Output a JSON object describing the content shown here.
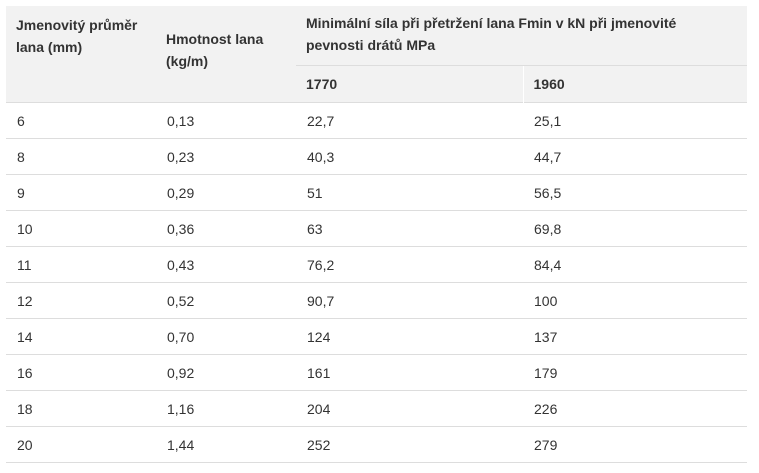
{
  "table": {
    "headers": {
      "diameter": "Jmenovitý průměr lana (mm)",
      "mass": "Hmotnost lana (kg/m)",
      "force_group": "Minimální síla při přetržení lana Fmin v kN při jmenovité pevnosti drátů MPa",
      "strength_1": "1770",
      "strength_2": "1960"
    },
    "rows": [
      [
        "6",
        "0,13",
        "22,7",
        "25,1"
      ],
      [
        "8",
        "0,23",
        "40,3",
        "44,7"
      ],
      [
        "9",
        "0,29",
        "51",
        "56,5"
      ],
      [
        "10",
        "0,36",
        "63",
        "69,8"
      ],
      [
        "11",
        "0,43",
        "76,2",
        "84,4"
      ],
      [
        "12",
        "0,52",
        "90,7",
        "100"
      ],
      [
        "14",
        "0,70",
        "124",
        "137"
      ],
      [
        "16",
        "0,92",
        "161",
        "179"
      ],
      [
        "18",
        "1,16",
        "204",
        "226"
      ],
      [
        "20",
        "1,44",
        "252",
        "279"
      ]
    ]
  }
}
